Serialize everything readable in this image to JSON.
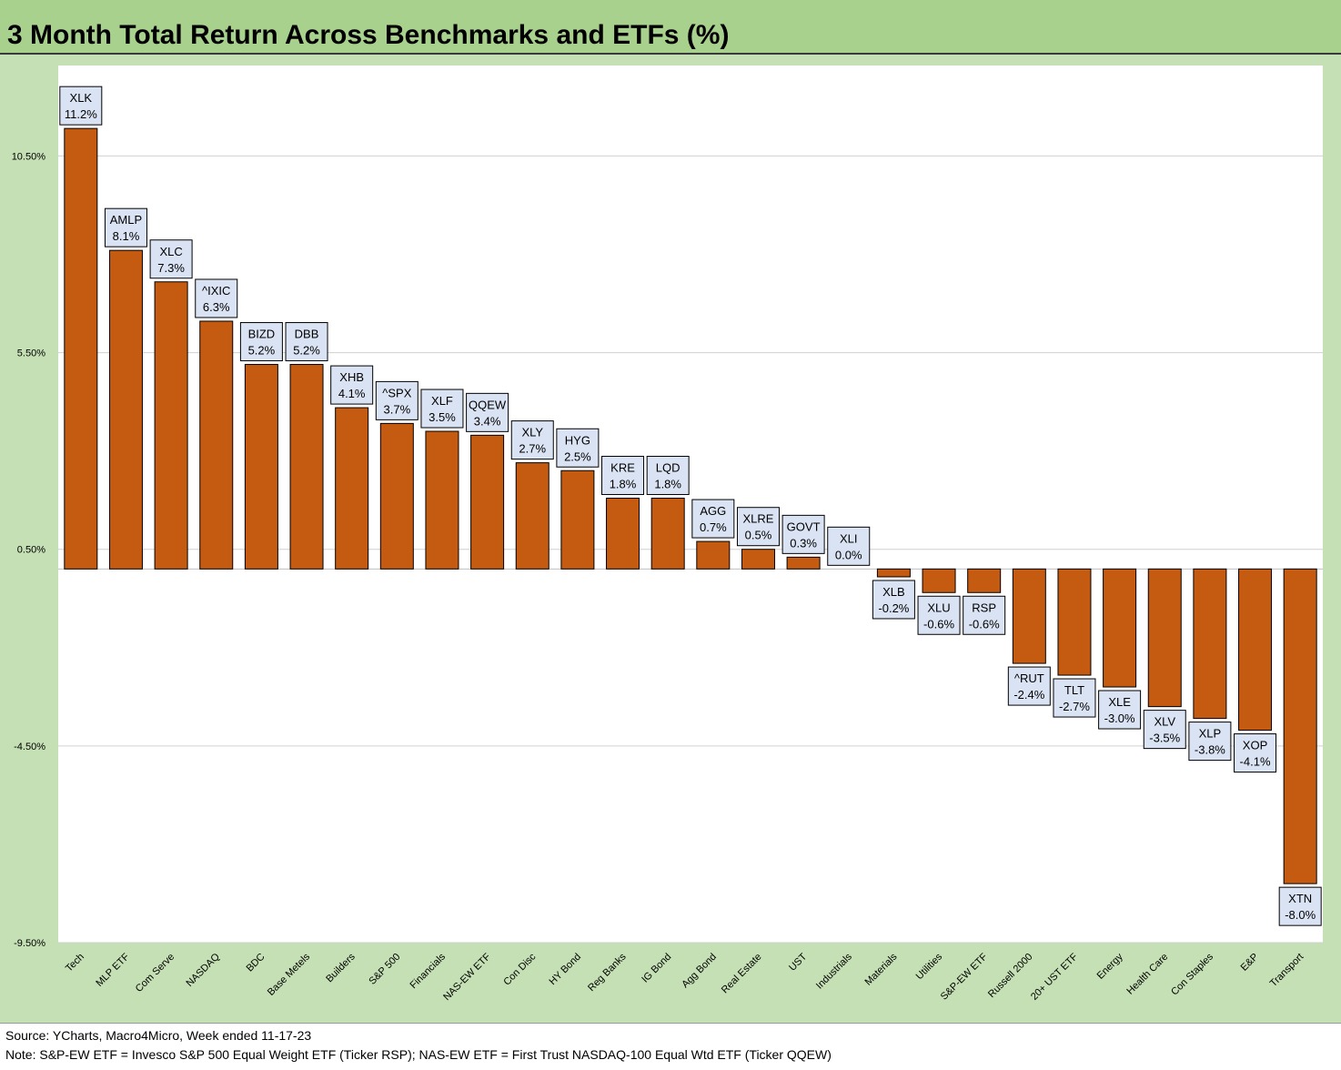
{
  "title": "3 Month Total Return Across Benchmarks and ETFs (%)",
  "footer": {
    "source": "Source: YCharts, Macro4Micro, Week ended 11-17-23",
    "note": "Note: S&P-EW ETF = Invesco S&P 500 Equal Weight ETF (Ticker RSP); NAS-EW ETF = First Trust NASDAQ-100 Equal Wtd ETF (Ticker QQEW)"
  },
  "colors": {
    "bar": "#c55a11",
    "title_bg": "#a9d18e",
    "chart_bg": "#c5e0b4",
    "plot_bg": "#ffffff",
    "label_bg": "#dae3f3"
  },
  "chart_data": {
    "type": "bar",
    "title": "3 Month Total Return Across Benchmarks and ETFs (%)",
    "xlabel": "",
    "ylabel": "",
    "ylim": [
      -9.5,
      12.8
    ],
    "yticks": [
      10.5,
      5.5,
      0.5,
      -4.5,
      -9.5
    ],
    "ytick_labels": [
      "10.50%",
      "5.50%",
      "0.50%",
      "-4.50%",
      "-9.50%"
    ],
    "grid": true,
    "legend": "none",
    "categories": [
      "Tech",
      "MLP ETF",
      "Com Serve",
      "NASDAQ",
      "BDC",
      "Base Metels",
      "Builders",
      "S&P 500",
      "Financials",
      "NAS-EW ETF",
      "Con Disc",
      "HY Bond",
      "Reg Banks",
      "IG Bond",
      "Agg Bond",
      "Real Estate",
      "UST",
      "Industrials",
      "Materials",
      "Utilities",
      "S&P-EW ETF",
      "Russell 2000",
      "20+ UST ETF",
      "Energy",
      "Health Care",
      "Con Staples",
      "E&P",
      "Transport"
    ],
    "tickers": [
      "XLK",
      "AMLP",
      "XLC",
      "^IXIC",
      "BIZD",
      "DBB",
      "XHB",
      "^SPX",
      "XLF",
      "QQEW",
      "XLY",
      "HYG",
      "KRE",
      "LQD",
      "AGG",
      "XLRE",
      "GOVT",
      "XLI",
      "XLB",
      "XLU",
      "RSP",
      "^RUT",
      "TLT",
      "XLE",
      "XLV",
      "XLP",
      "XOP",
      "XTN"
    ],
    "value_labels": [
      "11.2%",
      "8.1%",
      "7.3%",
      "6.3%",
      "5.2%",
      "5.2%",
      "4.1%",
      "3.7%",
      "3.5%",
      "3.4%",
      "2.7%",
      "2.5%",
      "1.8%",
      "1.8%",
      "0.7%",
      "0.5%",
      "0.3%",
      "0.0%",
      "-0.2%",
      "-0.6%",
      "-0.6%",
      "-2.4%",
      "-2.7%",
      "-3.0%",
      "-3.5%",
      "-3.8%",
      "-4.1%",
      "-8.0%"
    ],
    "values": [
      11.2,
      8.1,
      7.3,
      6.3,
      5.2,
      5.2,
      4.1,
      3.7,
      3.5,
      3.4,
      2.7,
      2.5,
      1.8,
      1.8,
      0.7,
      0.5,
      0.3,
      0.0,
      -0.2,
      -0.6,
      -0.6,
      -2.4,
      -2.7,
      -3.0,
      -3.5,
      -3.8,
      -4.1,
      -8.0
    ]
  }
}
